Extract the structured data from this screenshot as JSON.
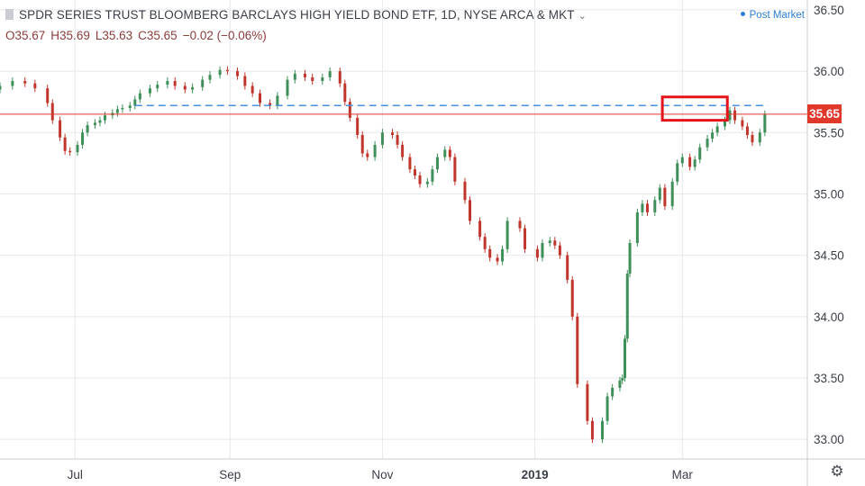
{
  "header": {
    "title": "SPDR SERIES TRUST BLOOMBERG BARCLAYS HIGH YIELD BOND ETF, 1D, NYSE ARCA & MKT",
    "ohlc": {
      "open": "O35.67",
      "high": "H35.69",
      "low": "L35.63",
      "close": "C35.65",
      "change": "−0.02 (−0.06%)"
    },
    "post_market": "Post Market"
  },
  "price_badge": {
    "label": "35.65",
    "value": 35.65
  },
  "icons": {
    "settings": "gear-icon"
  },
  "colors": {
    "up": "#3f8f5a",
    "down": "#c0362c",
    "last_price_line": "#e0392b",
    "dashed_level": "#4a90e2",
    "highlight_box": "#e5141b",
    "grid": "#e6e8ec"
  },
  "chart_data": {
    "type": "candlestick",
    "title": "",
    "y_axis": {
      "ylim": [
        32.84,
        36.58
      ],
      "ticks": [
        "33.00",
        "33.50",
        "34.00",
        "34.50",
        "35.00",
        "35.50",
        "36.00",
        "36.50"
      ],
      "position": "right"
    },
    "x_axis": {
      "ticks": [
        {
          "label": "Jul",
          "date": "2018-07-01",
          "bold": false
        },
        {
          "label": "Sep",
          "date": "2018-09-01",
          "bold": false
        },
        {
          "label": "Nov",
          "date": "2018-11-01",
          "bold": false
        },
        {
          "label": "2019",
          "date": "2019-01-01",
          "bold": true
        },
        {
          "label": "Mar",
          "date": "2019-03-01",
          "bold": false
        }
      ],
      "date_range": [
        "2018-06-01",
        "2019-04-20"
      ]
    },
    "grid": true,
    "last_price": 35.65,
    "dashed_level": 35.72,
    "highlight_box": {
      "date_from": "2019-02-21",
      "date_to": "2019-03-19",
      "price_low": 35.6,
      "price_high": 35.79
    },
    "daily_closes": [
      [
        "2018-06-01",
        35.88
      ],
      [
        "2018-06-06",
        35.92
      ],
      [
        "2018-06-11",
        35.9
      ],
      [
        "2018-06-15",
        35.86
      ],
      [
        "2018-06-20",
        35.74
      ],
      [
        "2018-06-22",
        35.6
      ],
      [
        "2018-06-25",
        35.46
      ],
      [
        "2018-06-27",
        35.35
      ],
      [
        "2018-06-29",
        35.34
      ],
      [
        "2018-07-02",
        35.4
      ],
      [
        "2018-07-04",
        35.5
      ],
      [
        "2018-07-06",
        35.56
      ],
      [
        "2018-07-09",
        35.58
      ],
      [
        "2018-07-11",
        35.6
      ],
      [
        "2018-07-13",
        35.64
      ],
      [
        "2018-07-16",
        35.66
      ],
      [
        "2018-07-18",
        35.69
      ],
      [
        "2018-07-20",
        35.7
      ],
      [
        "2018-07-23",
        35.72
      ],
      [
        "2018-07-25",
        35.77
      ],
      [
        "2018-07-27",
        35.82
      ],
      [
        "2018-07-31",
        35.86
      ],
      [
        "2018-08-03",
        35.89
      ],
      [
        "2018-08-07",
        35.92
      ],
      [
        "2018-08-10",
        35.88
      ],
      [
        "2018-08-14",
        35.85
      ],
      [
        "2018-08-17",
        35.87
      ],
      [
        "2018-08-21",
        35.93
      ],
      [
        "2018-08-24",
        35.97
      ],
      [
        "2018-08-28",
        36.01
      ],
      [
        "2018-08-31",
        36.0
      ],
      [
        "2018-09-04",
        35.96
      ],
      [
        "2018-09-07",
        35.88
      ],
      [
        "2018-09-10",
        35.82
      ],
      [
        "2018-09-13",
        35.74
      ],
      [
        "2018-09-17",
        35.72
      ],
      [
        "2018-09-20",
        35.8
      ],
      [
        "2018-09-24",
        35.93
      ],
      [
        "2018-09-27",
        35.98
      ],
      [
        "2018-10-01",
        35.95
      ],
      [
        "2018-10-04",
        35.92
      ],
      [
        "2018-10-08",
        35.95
      ],
      [
        "2018-10-11",
        36.0
      ],
      [
        "2018-10-15",
        35.9
      ],
      [
        "2018-10-17",
        35.75
      ],
      [
        "2018-10-19",
        35.62
      ],
      [
        "2018-10-22",
        35.48
      ],
      [
        "2018-10-24",
        35.33
      ],
      [
        "2018-10-26",
        35.3
      ],
      [
        "2018-10-29",
        35.4
      ],
      [
        "2018-11-01",
        35.5
      ],
      [
        "2018-11-05",
        35.48
      ],
      [
        "2018-11-07",
        35.4
      ],
      [
        "2018-11-09",
        35.3
      ],
      [
        "2018-11-12",
        35.2
      ],
      [
        "2018-11-14",
        35.15
      ],
      [
        "2018-11-16",
        35.08
      ],
      [
        "2018-11-19",
        35.1
      ],
      [
        "2018-11-21",
        35.2
      ],
      [
        "2018-11-23",
        35.3
      ],
      [
        "2018-11-26",
        35.36
      ],
      [
        "2018-11-28",
        35.3
      ],
      [
        "2018-11-30",
        35.1
      ],
      [
        "2018-12-04",
        34.95
      ],
      [
        "2018-12-06",
        34.78
      ],
      [
        "2018-12-10",
        34.65
      ],
      [
        "2018-12-12",
        34.55
      ],
      [
        "2018-12-14",
        34.48
      ],
      [
        "2018-12-17",
        34.45
      ],
      [
        "2018-12-19",
        34.55
      ],
      [
        "2018-12-21",
        34.78
      ],
      [
        "2018-12-26",
        34.72
      ],
      [
        "2018-12-28",
        34.55
      ],
      [
        "2019-01-02",
        34.48
      ],
      [
        "2019-01-04",
        34.6
      ],
      [
        "2019-01-07",
        34.62
      ],
      [
        "2019-01-09",
        34.58
      ],
      [
        "2019-01-11",
        34.5
      ],
      [
        "2019-01-14",
        34.3
      ],
      [
        "2019-01-16",
        34.0
      ],
      [
        "2019-01-18",
        33.45
      ],
      [
        "2019-01-22",
        33.15
      ],
      [
        "2019-01-24",
        33.0
      ],
      [
        "2019-01-28",
        33.15
      ],
      [
        "2019-01-30",
        33.35
      ],
      [
        "2019-02-01",
        33.42
      ],
      [
        "2019-02-04",
        33.48
      ],
      [
        "2019-02-05",
        33.5
      ],
      [
        "2019-02-06",
        33.82
      ],
      [
        "2019-02-07",
        34.35
      ],
      [
        "2019-02-08",
        34.6
      ],
      [
        "2019-02-11",
        34.85
      ],
      [
        "2019-02-13",
        34.92
      ],
      [
        "2019-02-15",
        34.85
      ],
      [
        "2019-02-18",
        34.95
      ],
      [
        "2019-02-20",
        35.05
      ],
      [
        "2019-02-22",
        34.9
      ],
      [
        "2019-02-25",
        35.1
      ],
      [
        "2019-02-27",
        35.25
      ],
      [
        "2019-03-01",
        35.3
      ],
      [
        "2019-03-04",
        35.22
      ],
      [
        "2019-03-06",
        35.28
      ],
      [
        "2019-03-08",
        35.38
      ],
      [
        "2019-03-11",
        35.45
      ],
      [
        "2019-03-13",
        35.5
      ],
      [
        "2019-03-15",
        35.55
      ],
      [
        "2019-03-18",
        35.6
      ],
      [
        "2019-03-20",
        35.68
      ],
      [
        "2019-03-22",
        35.6
      ],
      [
        "2019-03-25",
        35.55
      ],
      [
        "2019-03-27",
        35.48
      ],
      [
        "2019-03-29",
        35.42
      ],
      [
        "2019-04-01",
        35.5
      ],
      [
        "2019-04-03",
        35.65
      ]
    ]
  }
}
